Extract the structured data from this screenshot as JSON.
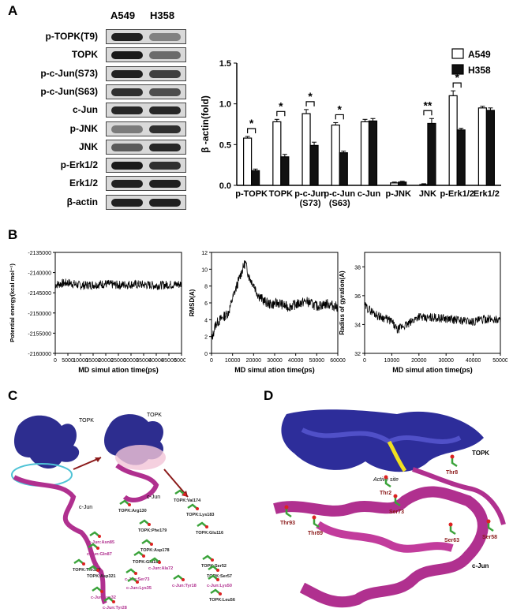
{
  "panels": {
    "a": "A",
    "b": "B",
    "c": "C",
    "d": "D"
  },
  "blot": {
    "cell_lines": [
      "A549",
      "H358"
    ],
    "rows": [
      {
        "label": "p-TOPK(T9)",
        "a549": 0.9,
        "h358": 0.25
      },
      {
        "label": "TOPK",
        "a549": 0.95,
        "h358": 0.4
      },
      {
        "label": "p-c-Jun(S73)",
        "a549": 0.9,
        "h358": 0.7
      },
      {
        "label": "p-c-Jun(S63)",
        "a549": 0.8,
        "h358": 0.6
      },
      {
        "label": "c-Jun",
        "a549": 0.85,
        "h358": 0.85
      },
      {
        "label": "p-JNK",
        "a549": 0.3,
        "h358": 0.8
      },
      {
        "label": "JNK",
        "a549": 0.5,
        "h358": 0.85
      },
      {
        "label": "p-Erk1/2",
        "a549": 0.95,
        "h358": 0.8
      },
      {
        "label": "Erk1/2",
        "a549": 0.9,
        "h358": 0.9
      },
      {
        "label": "β-actin",
        "a549": 0.9,
        "h358": 0.9
      }
    ]
  },
  "chart_data": [
    {
      "type": "bar",
      "ylabel": "β -actin(fold)",
      "ylim": [
        0,
        1.5
      ],
      "yticks": [
        "0.0",
        "0.5",
        "1.0",
        "1.5"
      ],
      "categories": [
        "p-TOPK",
        "TOPK",
        "p-c-Jun\n(S73)",
        "p-c-Jun\n(S63)",
        "c-Jun",
        "p-JNK",
        "JNK",
        "p-Erk1/2",
        "Erk1/2"
      ],
      "series": [
        {
          "name": "A549",
          "color": "#ffffff",
          "values": [
            0.58,
            0.78,
            0.88,
            0.74,
            0.78,
            0.03,
            0.01,
            1.1,
            0.95
          ],
          "errors": [
            0.02,
            0.03,
            0.05,
            0.03,
            0.03,
            0.01,
            0.01,
            0.06,
            0.02
          ]
        },
        {
          "name": "H358",
          "color": "#111111",
          "values": [
            0.18,
            0.35,
            0.49,
            0.4,
            0.79,
            0.04,
            0.76,
            0.68,
            0.92
          ],
          "errors": [
            0.02,
            0.03,
            0.04,
            0.02,
            0.03,
            0.01,
            0.06,
            0.02,
            0.03
          ]
        }
      ],
      "significance": [
        "*",
        "*",
        "*",
        "*",
        "",
        "",
        "**",
        "*",
        ""
      ]
    },
    {
      "type": "line",
      "ylabel": "Potential energy(kcal mol⁻¹)",
      "xlabel": "MD simul ation time(ps)",
      "xlim": [
        0,
        50000
      ],
      "ylim": [
        -2160000,
        -2135000
      ],
      "yticks": [
        "-2135000",
        "-2140000",
        "-2145000",
        "-2150000",
        "-2155000",
        "-2160000"
      ],
      "xticks": [
        "0",
        "5000",
        "10000",
        "15000",
        "20000",
        "25000",
        "30000",
        "35000",
        "40000",
        "45000",
        "50000"
      ],
      "series": [
        {
          "values": [
            -2143000,
            -2142500,
            -2143200,
            -2143000,
            -2142800,
            -2143100,
            -2142900,
            -2143000,
            -2143200,
            -2143000,
            -2142900
          ]
        }
      ]
    },
    {
      "type": "line",
      "ylabel": "RMSD(A)",
      "xlabel": "MD simul ation time(ps)",
      "xlim": [
        0,
        60000
      ],
      "ylim": [
        0,
        12
      ],
      "yticks": [
        "0",
        "2",
        "4",
        "6",
        "8",
        "10",
        "12"
      ],
      "xticks": [
        "0",
        "10000",
        "20000",
        "30000",
        "40000",
        "50000",
        "60000"
      ],
      "series": [
        {
          "x": [
            0,
            2000,
            5000,
            8000,
            10000,
            12000,
            14000,
            16000,
            18000,
            20000,
            22000,
            25000,
            28000,
            32000,
            36000,
            40000,
            45000,
            50000,
            55000,
            60000
          ],
          "values": [
            1.5,
            3.5,
            4.2,
            4.8,
            6.5,
            8.0,
            9.5,
            10.8,
            9.0,
            8.2,
            7.0,
            6.2,
            5.8,
            6.0,
            5.5,
            5.8,
            6.2,
            5.6,
            5.9,
            5.5
          ]
        }
      ]
    },
    {
      "type": "line",
      "ylabel": "Radius of gyration(A)",
      "xlabel": "MD simul ation time(ps)",
      "xlim": [
        0,
        50000
      ],
      "ylim": [
        32,
        39
      ],
      "yticks": [
        "32",
        "34",
        "36",
        "38"
      ],
      "xticks": [
        "0",
        "10000",
        "20000",
        "30000",
        "40000",
        "50000"
      ],
      "series": [
        {
          "x": [
            0,
            2000,
            5000,
            8000,
            10000,
            12000,
            14000,
            16000,
            18000,
            20000,
            22000,
            25000,
            30000,
            35000,
            40000,
            45000,
            50000
          ],
          "values": [
            35.3,
            35.0,
            34.6,
            34.4,
            34.2,
            33.6,
            33.9,
            34.0,
            34.3,
            34.6,
            34.4,
            34.5,
            34.4,
            34.3,
            34.2,
            34.4,
            34.3
          ]
        }
      ]
    }
  ],
  "structure_c": {
    "labels": {
      "topk1": "TOPK",
      "cjun1": "c-Jun",
      "topk2": "TOPK",
      "cjun2": "c-Jun"
    },
    "residues": [
      "TOPK:Arg130",
      "TOPK:Val174",
      "TOPK:Lys183",
      "TOPK:Phe179",
      "TOPK:Glu116",
      "c-Jun:Asn85",
      "TOPK:Asp178",
      "c-Jun:Gln87",
      "TOPK:Glu180",
      "c-Jun:Ala72",
      "TOPK:Ser52",
      "TOPK:Ser57",
      "c-Jun:Lys50",
      "c-Jun:Tyr18",
      "TOPK:Thr320",
      "TOPK:Asp321",
      "c-Jun:Ser73",
      "c-Jun:Lys35",
      "c-Jun:Lys32",
      "c-Jun:Tyr28",
      "TOPK:Leu56"
    ]
  },
  "structure_d": {
    "labels": [
      "TOPK",
      "Active site",
      "Thr8",
      "Thr2",
      "Ser73",
      "Thr93",
      "Thr89",
      "Ser63",
      "Ser58",
      "c-Jun"
    ]
  }
}
